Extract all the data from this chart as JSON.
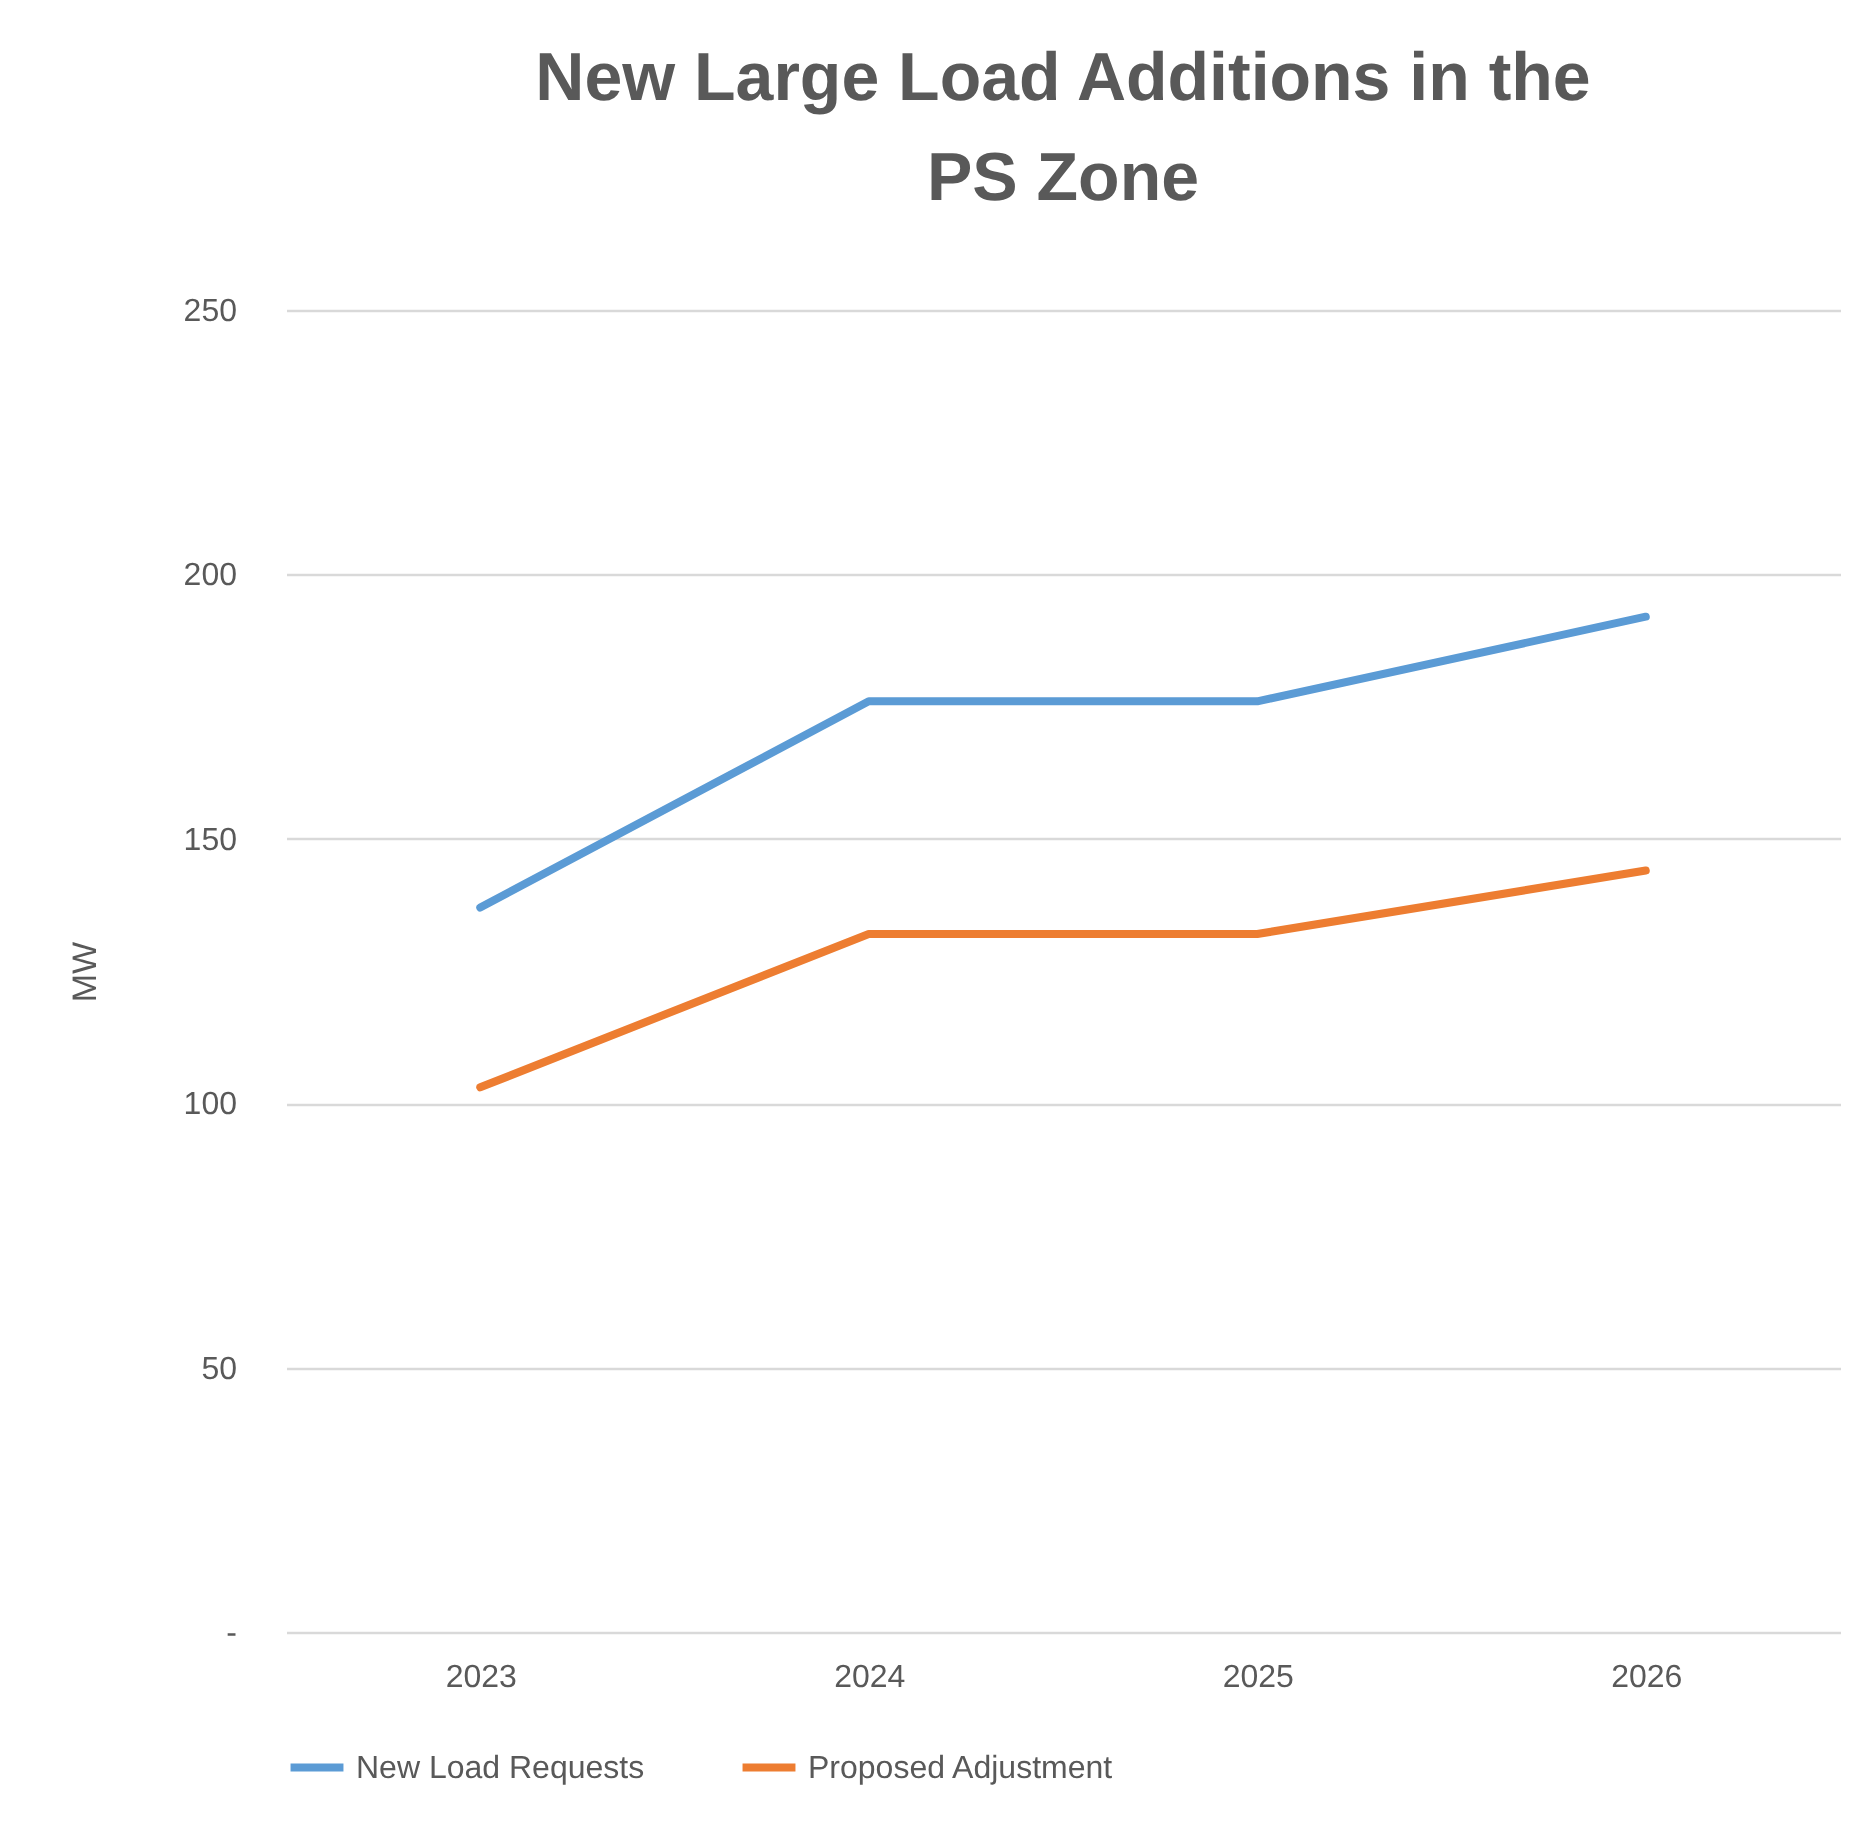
{
  "chart_data": {
    "type": "line",
    "title": [
      "New Large Load Additions in the",
      "PS Zone"
    ],
    "ylabel": "MW",
    "categories": [
      "2023",
      "2024",
      "2025",
      "2026"
    ],
    "series": [
      {
        "name": "New Load Requests",
        "color": "#5b9bd5",
        "values": [
          137,
          176,
          176,
          192
        ]
      },
      {
        "name": "Proposed Adjustment",
        "color": "#ed7d31",
        "values": [
          103,
          132,
          132,
          144
        ]
      }
    ],
    "ylim": [
      0,
      250
    ],
    "yticks": [
      {
        "value": 0,
        "label": "-"
      },
      50,
      100,
      150,
      200,
      250
    ],
    "grid": "y",
    "legend": "bottom"
  }
}
